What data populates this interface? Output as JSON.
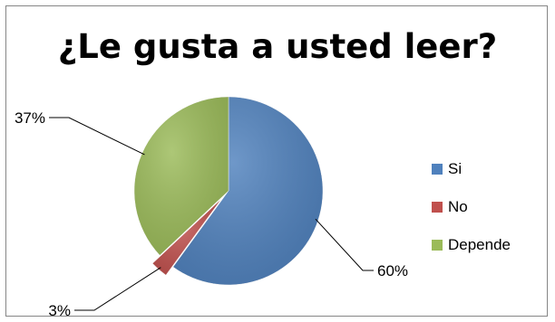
{
  "chart_data": {
    "type": "pie",
    "title": "¿Le gusta a usted leer?",
    "categories": [
      "Si",
      "No",
      "Depende"
    ],
    "values": [
      60,
      3,
      37
    ],
    "data_labels": [
      "60%",
      "3%",
      "37%"
    ],
    "colors": [
      "#4F81BD",
      "#C0504D",
      "#9BBB59"
    ],
    "legend_position": "right",
    "exploded_slice": "No"
  }
}
